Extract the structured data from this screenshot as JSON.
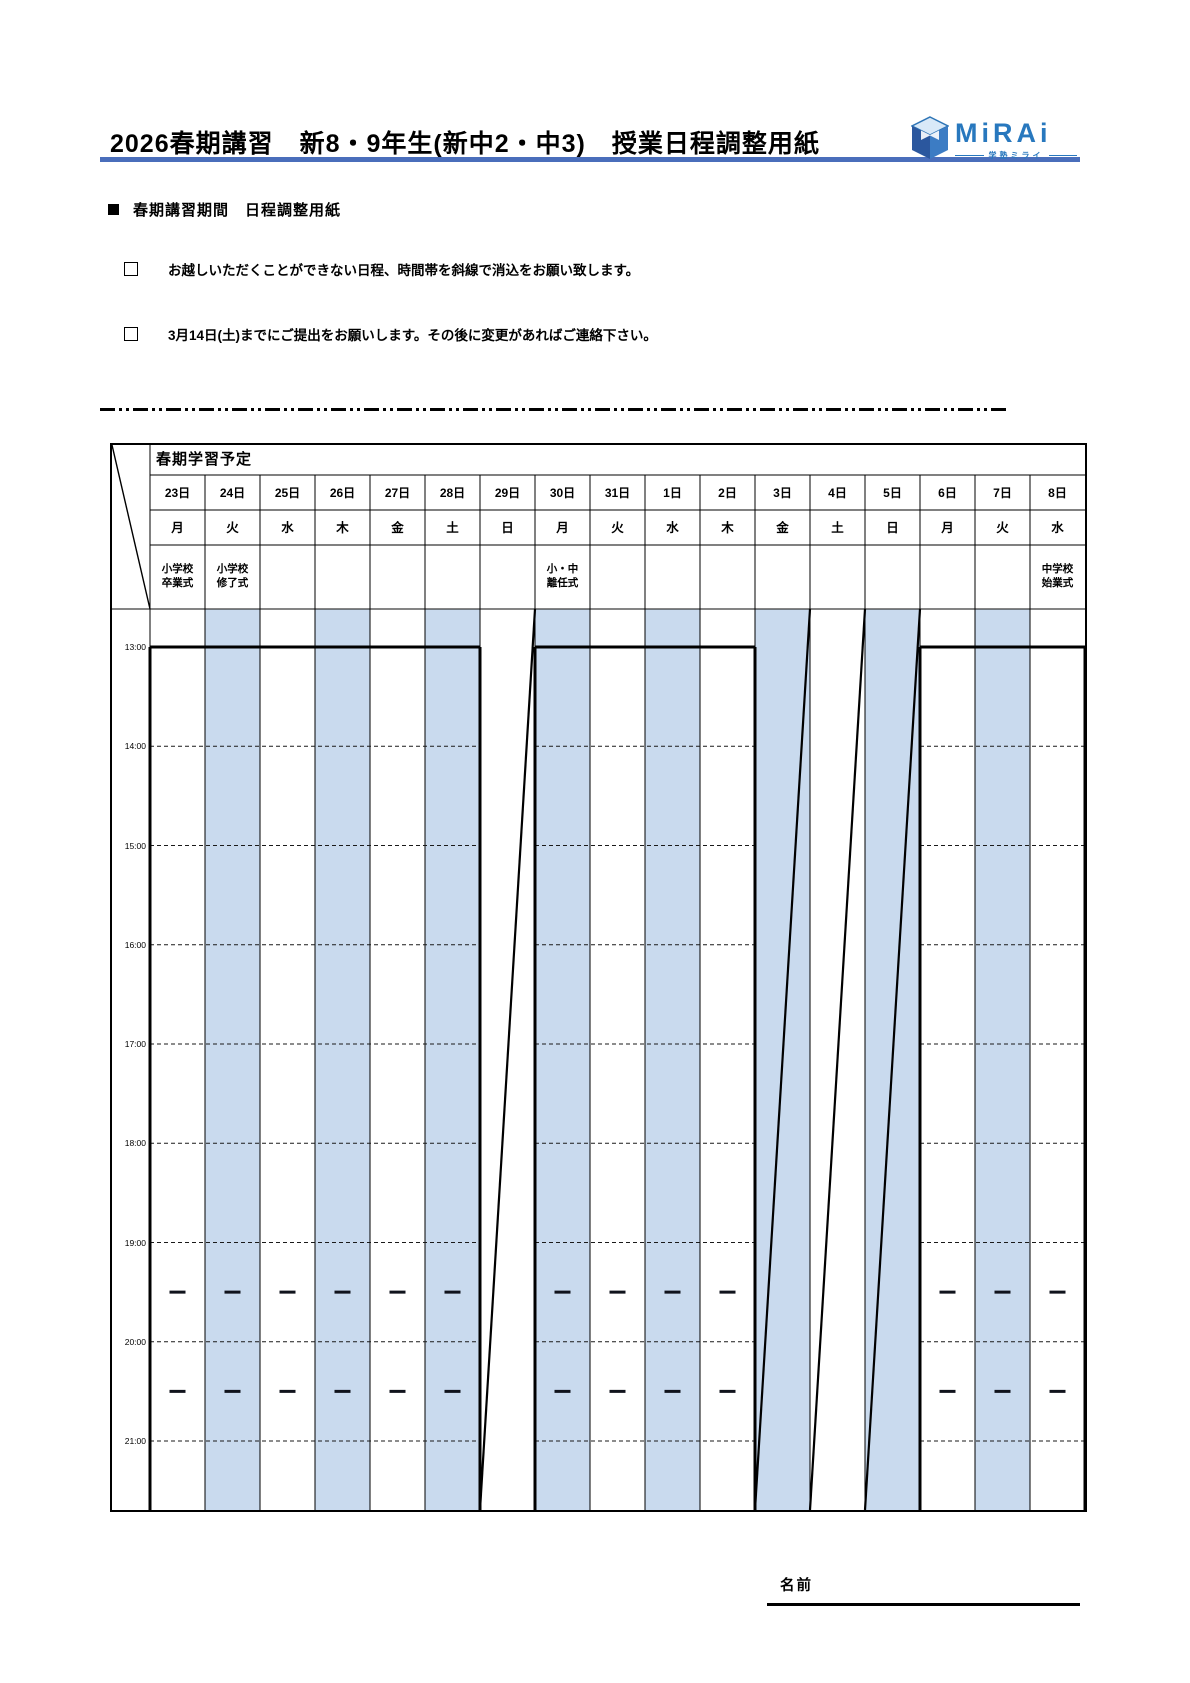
{
  "header": {
    "title": "2026春期講習　新8・9年生(新中2・中3)　授業日程調整用紙",
    "logo": {
      "name": "MiRAi",
      "subtitle": "学塾ミライ"
    },
    "accent_color": "#4a6ebb"
  },
  "section_heading": "春期講習期間　日程調整用紙",
  "instructions": [
    "お越しいただくことができない日程、時間帯を斜線で消込をお願い致します。",
    "3月14日(土)までにご提出をお願いします。その後に変更があればご連絡下さい。"
  ],
  "schedule": {
    "title": "春期学習予定",
    "time_labels": [
      "13:00",
      "14:00",
      "15:00",
      "16:00",
      "17:00",
      "18:00",
      "19:00",
      "20:00",
      "21:00"
    ],
    "dash_mark_times": [
      "19:30",
      "20:30"
    ],
    "shaded_color": "#c9daee",
    "columns": [
      {
        "date": "23日",
        "day": "月",
        "event": "小学校\n卒業式",
        "shaded": false,
        "crossed": false
      },
      {
        "date": "24日",
        "day": "火",
        "event": "小学校\n修了式",
        "shaded": true,
        "crossed": false
      },
      {
        "date": "25日",
        "day": "水",
        "event": "",
        "shaded": false,
        "crossed": false
      },
      {
        "date": "26日",
        "day": "木",
        "event": "",
        "shaded": true,
        "crossed": false
      },
      {
        "date": "27日",
        "day": "金",
        "event": "",
        "shaded": false,
        "crossed": false
      },
      {
        "date": "28日",
        "day": "土",
        "event": "",
        "shaded": true,
        "crossed": false
      },
      {
        "date": "29日",
        "day": "日",
        "event": "",
        "shaded": false,
        "crossed": true
      },
      {
        "date": "30日",
        "day": "月",
        "event": "小・中\n離任式",
        "shaded": true,
        "crossed": false
      },
      {
        "date": "31日",
        "day": "火",
        "event": "",
        "shaded": false,
        "crossed": false
      },
      {
        "date": "1日",
        "day": "水",
        "event": "",
        "shaded": true,
        "crossed": false
      },
      {
        "date": "2日",
        "day": "木",
        "event": "",
        "shaded": false,
        "crossed": false
      },
      {
        "date": "3日",
        "day": "金",
        "event": "",
        "shaded": true,
        "crossed": true
      },
      {
        "date": "4日",
        "day": "土",
        "event": "",
        "shaded": false,
        "crossed": true
      },
      {
        "date": "5日",
        "day": "日",
        "event": "",
        "shaded": true,
        "crossed": true
      },
      {
        "date": "6日",
        "day": "月",
        "event": "",
        "shaded": false,
        "crossed": false
      },
      {
        "date": "7日",
        "day": "火",
        "event": "",
        "shaded": true,
        "crossed": false
      },
      {
        "date": "8日",
        "day": "水",
        "event": "中学校\n始業式",
        "shaded": false,
        "crossed": false
      }
    ]
  },
  "footer": {
    "name_label": "名前"
  }
}
